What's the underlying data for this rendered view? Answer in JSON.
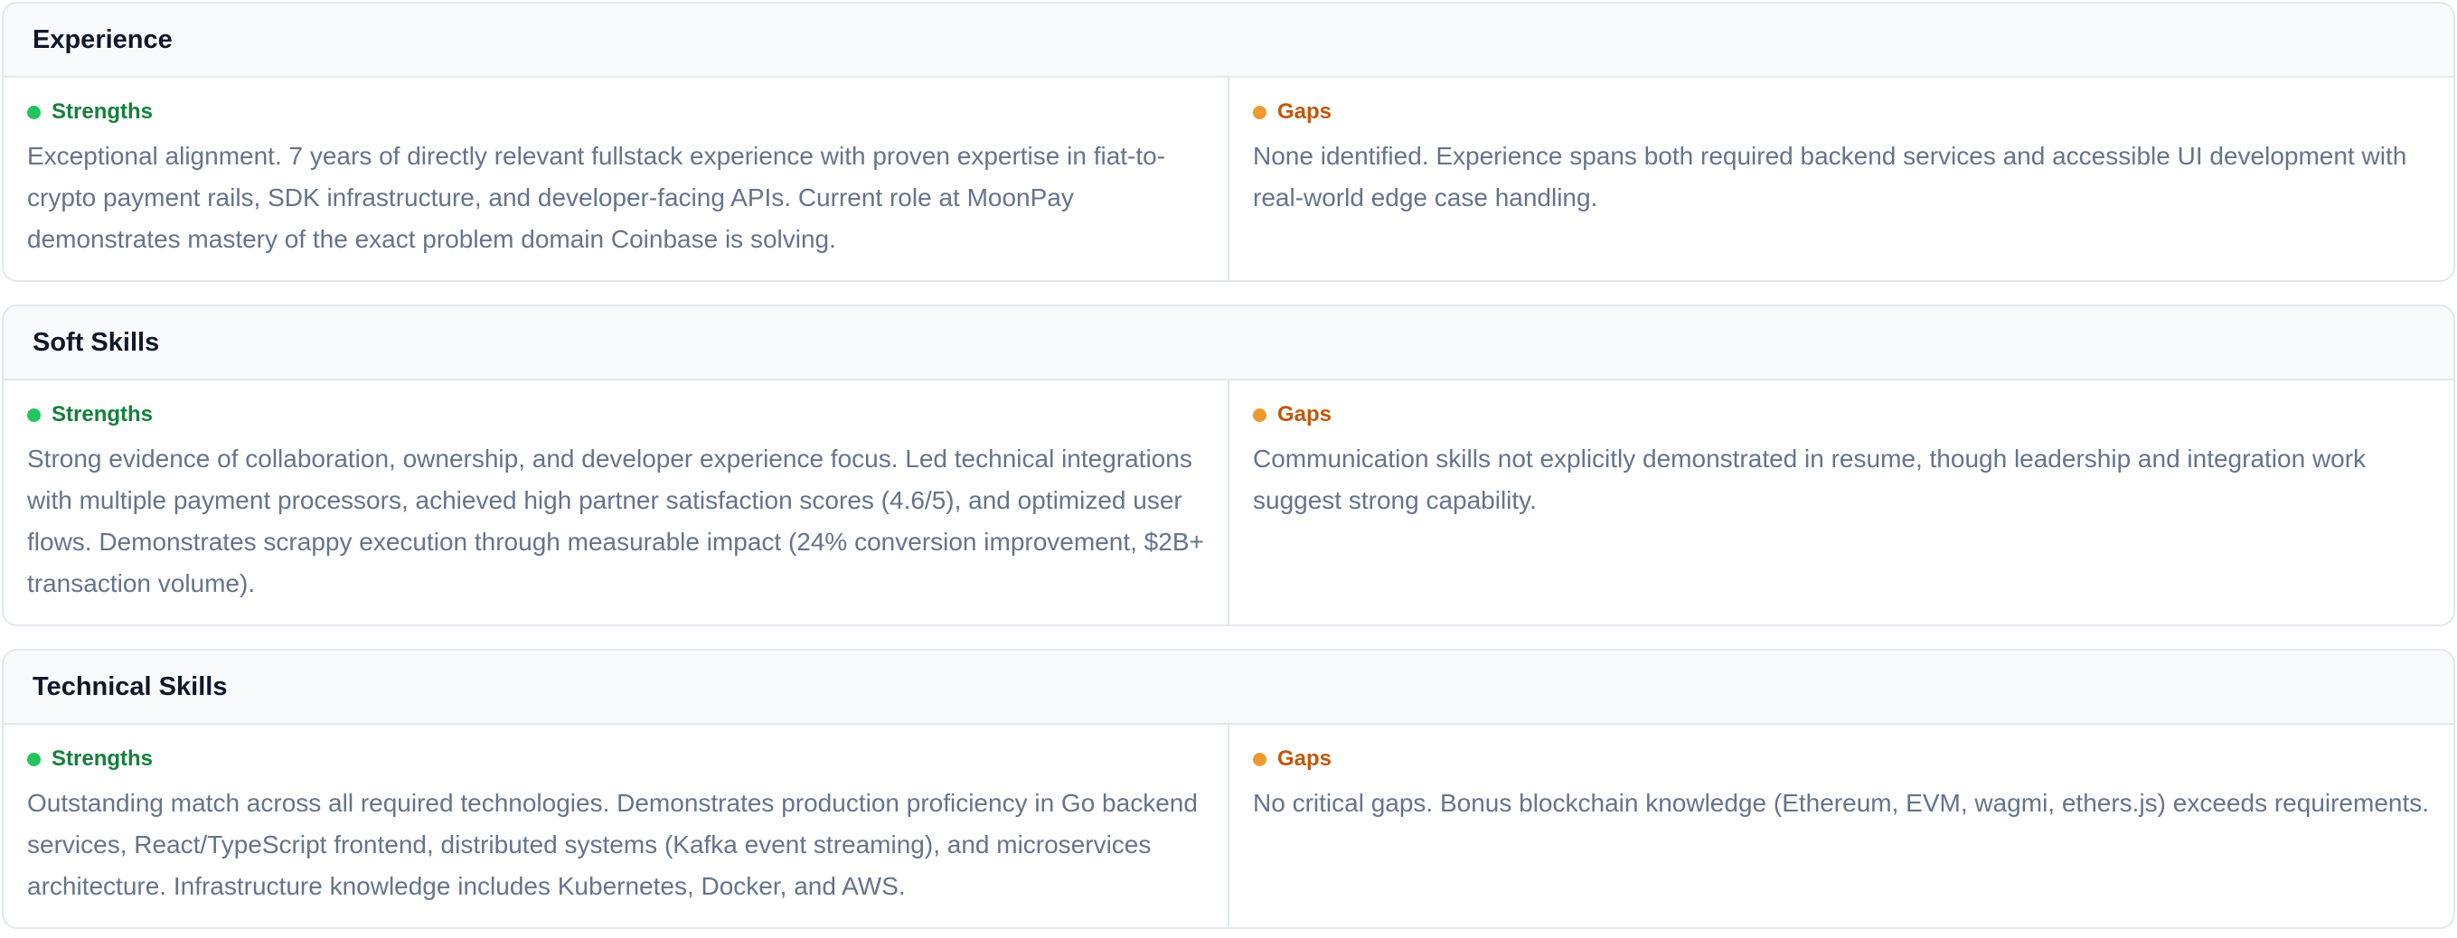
{
  "sections": [
    {
      "title": "Experience",
      "strengths": {
        "label": "Strengths",
        "text": "Exceptional alignment. 7 years of directly relevant fullstack experience with proven expertise in fiat-to-crypto payment rails, SDK infrastructure, and developer-facing APIs. Current role at MoonPay demonstrates mastery of the exact problem domain Coinbase is solving."
      },
      "gaps": {
        "label": "Gaps",
        "text": "None identified. Experience spans both required backend services and accessible UI development with real-world edge case handling."
      }
    },
    {
      "title": "Soft Skills",
      "strengths": {
        "label": "Strengths",
        "text": "Strong evidence of collaboration, ownership, and developer experience focus. Led technical integrations with multiple payment processors, achieved high partner satisfaction scores (4.6/5), and optimized user flows. Demonstrates scrappy execution through measurable impact (24% conversion improvement, $2B+ transaction volume)."
      },
      "gaps": {
        "label": "Gaps",
        "text": "Communication skills not explicitly demonstrated in resume, though leadership and integration work suggest strong capability."
      }
    },
    {
      "title": "Technical Skills",
      "strengths": {
        "label": "Strengths",
        "text": "Outstanding match across all required technologies. Demonstrates production proficiency in Go backend services, React/TypeScript frontend, distributed systems (Kafka event streaming), and microservices architecture. Infrastructure knowledge includes Kubernetes, Docker, and AWS."
      },
      "gaps": {
        "label": "Gaps",
        "text": "No critical gaps. Bonus blockchain knowledge (Ethereum, EVM, wagmi, ethers.js) exceeds requirements."
      }
    }
  ]
}
